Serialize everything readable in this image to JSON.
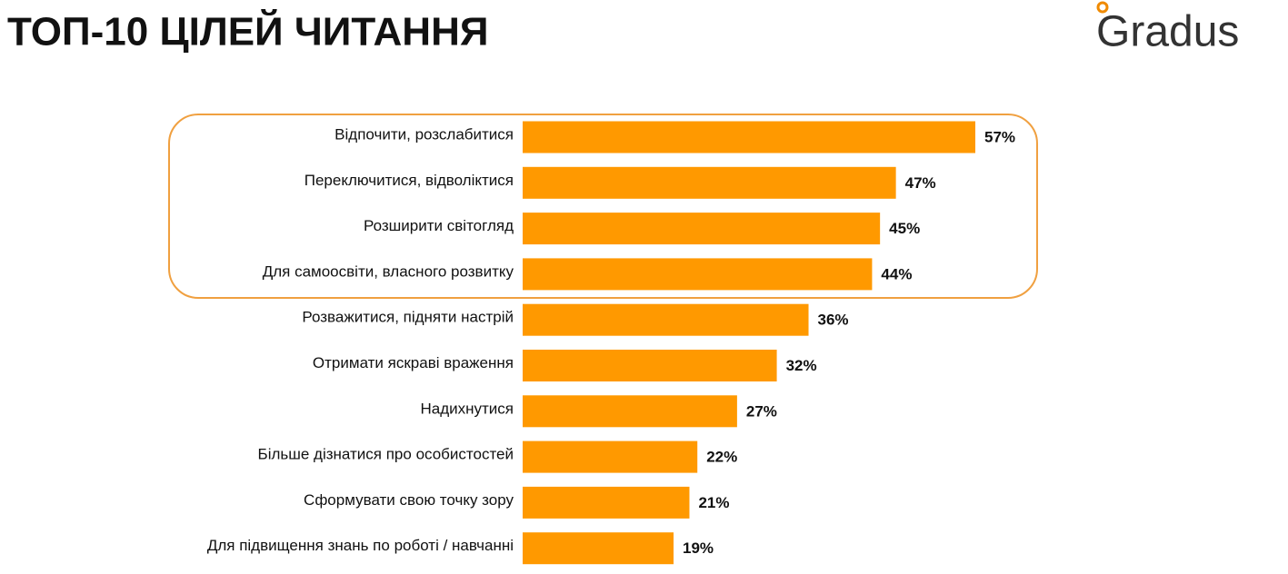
{
  "logo": "Gradus",
  "chart_data": {
    "type": "barh",
    "title": "ТОП-10 ЦІЛЕЙ ЧИТАННЯ",
    "categories": [
      "Відпочити, розслабитися",
      "Переключитися, відволіктися",
      "Розширити світогляд",
      "Для самоосвіти, власного розвитку",
      "Розважитися, підняти настрій",
      "Отримати яскраві враження",
      "Надихнутися",
      "Більше дізнатися про особистостей",
      "Сформувати свою точку зору",
      "Для підвищення знань по роботі / навчанні"
    ],
    "values": [
      57,
      47,
      45,
      44,
      36,
      32,
      27,
      22,
      21,
      19
    ],
    "value_labels": [
      "57%",
      "47%",
      "45%",
      "44%",
      "36%",
      "32%",
      "27%",
      "22%",
      "21%",
      "19%"
    ],
    "color": "#ff9900"
  }
}
